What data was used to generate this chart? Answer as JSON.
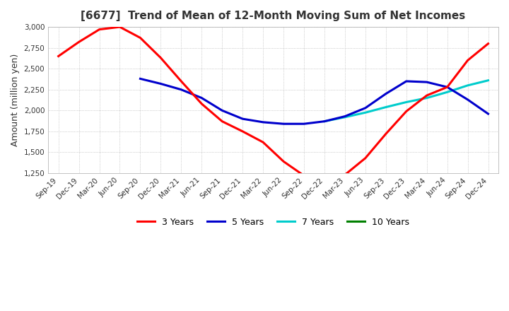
{
  "title": "[6677]  Trend of Mean of 12-Month Moving Sum of Net Incomes",
  "ylabel": "Amount (million yen)",
  "ylim": [
    1250,
    3000
  ],
  "yticks": [
    1250,
    1500,
    1750,
    2000,
    2250,
    2500,
    2750,
    3000
  ],
  "background_color": "#ffffff",
  "plot_background": "#ffffff",
  "legend": [
    "3 Years",
    "5 Years",
    "7 Years",
    "10 Years"
  ],
  "colors": [
    "#ff0000",
    "#0000cc",
    "#00cccc",
    "#008000"
  ],
  "x_labels": [
    "Sep-19",
    "Dec-19",
    "Mar-20",
    "Jun-20",
    "Sep-20",
    "Dec-20",
    "Mar-21",
    "Jun-21",
    "Sep-21",
    "Dec-21",
    "Mar-22",
    "Jun-22",
    "Sep-22",
    "Dec-22",
    "Mar-23",
    "Jun-23",
    "Sep-23",
    "Dec-23",
    "Mar-24",
    "Jun-24",
    "Sep-24",
    "Dec-24"
  ],
  "series_3y": [
    2650,
    2820,
    2970,
    3000,
    2870,
    2630,
    2350,
    2080,
    1870,
    1750,
    1620,
    1390,
    1220,
    1180,
    1230,
    1430,
    1720,
    1990,
    2180,
    2280,
    2600,
    2800
  ],
  "series_5y": [
    null,
    null,
    null,
    null,
    2380,
    2320,
    2250,
    2150,
    2000,
    1900,
    1860,
    1840,
    1840,
    1870,
    1930,
    2030,
    2200,
    2350,
    2340,
    2280,
    2130,
    1960
  ],
  "series_7y": [
    null,
    null,
    null,
    null,
    null,
    null,
    null,
    null,
    null,
    null,
    null,
    null,
    null,
    1870,
    1920,
    1975,
    2040,
    2100,
    2150,
    2220,
    2300,
    2360
  ],
  "series_10y": [
    null,
    null,
    null,
    null,
    null,
    null,
    null,
    null,
    null,
    null,
    null,
    null,
    null,
    null,
    null,
    null,
    null,
    null,
    null,
    null,
    null,
    null
  ]
}
